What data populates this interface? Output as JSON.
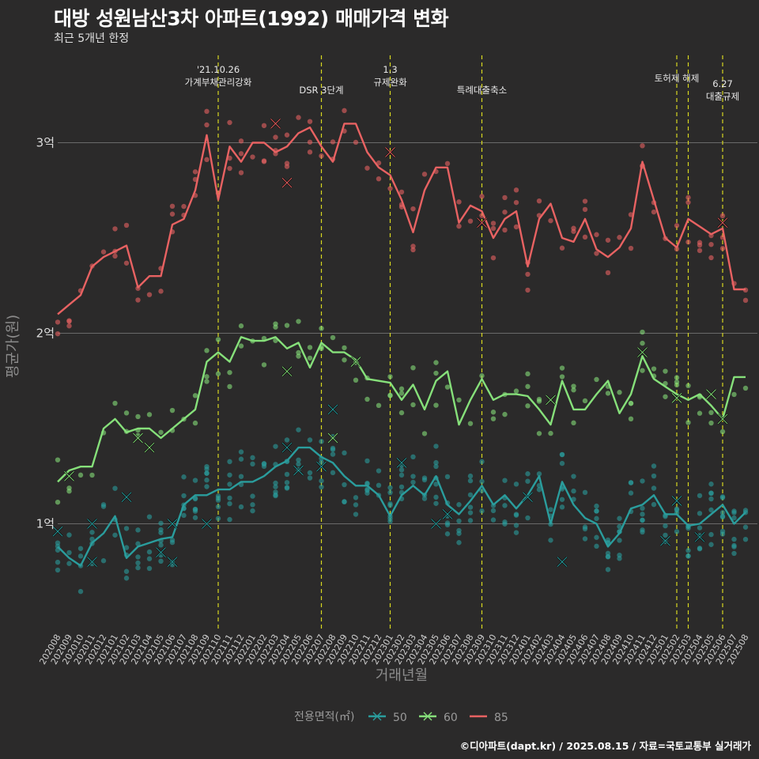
{
  "header": {
    "title": "대방 성원남산3차 아파트(1992) 매매가격 변화",
    "subtitle": "최근 5개년 한정"
  },
  "caption": "©디아파트(dapt.kr) / 2025.08.15 / 자료=국토교통부 실거래가",
  "colors": {
    "background": "#2b2a2a",
    "s50": "#2a9d9d",
    "s60": "#86e07a",
    "s85": "#e86262",
    "event": "#d8d820",
    "grid": "#6a6a6a"
  },
  "chart_data": {
    "type": "line",
    "xlabel": "거래년월",
    "ylabel": "평균가(원)",
    "ylim": [
      0.45,
      3.5
    ],
    "y_ticks": [
      {
        "v": 1,
        "label": "1억"
      },
      {
        "v": 2,
        "label": "2억"
      },
      {
        "v": 3,
        "label": "3억"
      }
    ],
    "x": [
      "202008",
      "202009",
      "202010",
      "202011",
      "202012",
      "202101",
      "202102",
      "202103",
      "202104",
      "202105",
      "202106",
      "202107",
      "202108",
      "202109",
      "202110",
      "202111",
      "202112",
      "202201",
      "202202",
      "202203",
      "202204",
      "202205",
      "202206",
      "202207",
      "202208",
      "202209",
      "202210",
      "202211",
      "202212",
      "202301",
      "202302",
      "202303",
      "202304",
      "202305",
      "202306",
      "202307",
      "202308",
      "202309",
      "202310",
      "202311",
      "202312",
      "202401",
      "202402",
      "202403",
      "202404",
      "202405",
      "202406",
      "202407",
      "202408",
      "202409",
      "202410",
      "202411",
      "202412",
      "202501",
      "202502",
      "202503",
      "202504",
      "202505",
      "202506",
      "202507",
      "202508"
    ],
    "legend": {
      "title": "전용면적(㎡)",
      "position": "bottom"
    },
    "series": [
      {
        "name": "50",
        "values": [
          0.88,
          0.82,
          0.78,
          0.9,
          0.95,
          1.04,
          0.82,
          0.88,
          0.9,
          0.92,
          0.93,
          1.1,
          1.15,
          1.15,
          1.18,
          1.18,
          1.22,
          1.22,
          1.25,
          1.3,
          1.33,
          1.4,
          1.4,
          1.35,
          1.32,
          1.25,
          1.2,
          1.2,
          1.15,
          1.04,
          1.15,
          1.2,
          1.15,
          1.25,
          1.1,
          1.05,
          1.12,
          1.2,
          1.1,
          1.15,
          1.08,
          1.15,
          1.25,
          1.0,
          1.22,
          1.1,
          1.03,
          1.0,
          0.88,
          0.95,
          1.08,
          1.1,
          1.15,
          1.05,
          1.05,
          0.99,
          1.0,
          1.05,
          1.1,
          1.0,
          1.06
        ]
      },
      {
        "name": "60",
        "values": [
          1.22,
          1.28,
          1.3,
          1.3,
          1.5,
          1.55,
          1.48,
          1.5,
          1.5,
          1.45,
          1.5,
          1.55,
          1.6,
          1.85,
          1.9,
          1.85,
          1.98,
          1.96,
          1.96,
          1.98,
          1.92,
          1.95,
          1.82,
          1.95,
          1.9,
          1.9,
          1.86,
          1.76,
          1.75,
          1.74,
          1.65,
          1.73,
          1.6,
          1.75,
          1.8,
          1.52,
          1.65,
          1.76,
          1.65,
          1.68,
          1.68,
          1.67,
          1.6,
          1.52,
          1.75,
          1.6,
          1.6,
          1.68,
          1.75,
          1.58,
          1.68,
          1.88,
          1.76,
          1.72,
          1.68,
          1.65,
          1.68,
          1.62,
          1.55,
          1.77,
          1.77
        ]
      },
      {
        "name": "85",
        "values": [
          2.1,
          2.15,
          2.2,
          2.35,
          2.4,
          2.43,
          2.46,
          2.24,
          2.3,
          2.3,
          2.57,
          2.6,
          2.75,
          3.04,
          2.7,
          2.98,
          2.9,
          3.0,
          3.0,
          2.95,
          2.98,
          3.05,
          3.08,
          2.98,
          2.9,
          3.1,
          3.1,
          2.95,
          2.87,
          2.83,
          2.7,
          2.53,
          2.75,
          2.87,
          2.87,
          2.58,
          2.67,
          2.64,
          2.5,
          2.6,
          2.64,
          2.35,
          2.6,
          2.68,
          2.5,
          2.48,
          2.6,
          2.44,
          2.4,
          2.45,
          2.55,
          2.9,
          2.7,
          2.5,
          2.45,
          2.6,
          2.56,
          2.52,
          2.55,
          2.23,
          2.23
        ]
      }
    ],
    "events": [
      {
        "x": "202110",
        "label_lines": [
          "'21.10.26",
          "가계부채관리강화"
        ]
      },
      {
        "x": "202207",
        "label_lines": [
          "DSR 3단계"
        ]
      },
      {
        "x": "202301",
        "label_lines": [
          "1.3",
          "규제완화"
        ]
      },
      {
        "x": "202309",
        "label_lines": [
          "특례대출축소"
        ]
      },
      {
        "x": "202502",
        "label_lines": [
          "토허제 해제"
        ]
      },
      {
        "x": "202503",
        "label_lines": []
      },
      {
        "x": "202506",
        "label_lines": [
          "6.27",
          "대출규제"
        ]
      }
    ]
  }
}
